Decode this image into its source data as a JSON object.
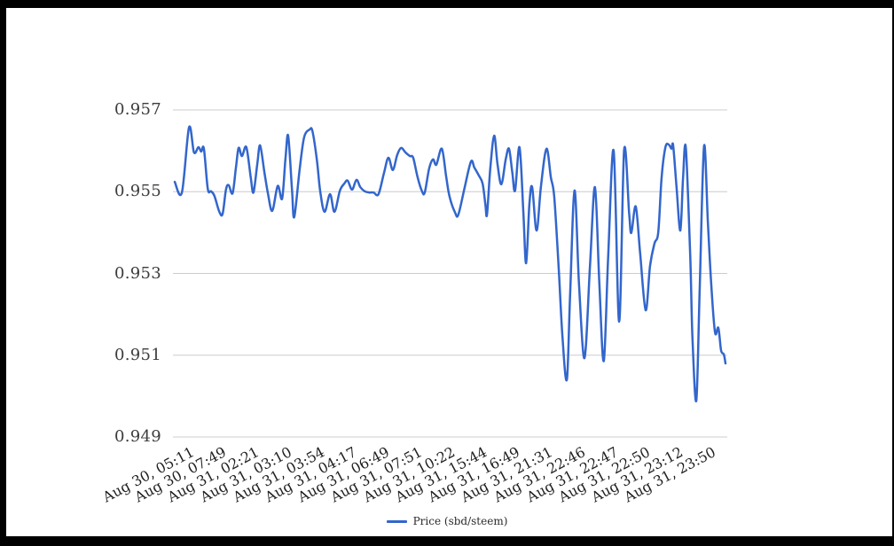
{
  "frame": {
    "border_color": "#000000",
    "background_color": "#ffffff"
  },
  "colors": {
    "line": "#3366cc",
    "grid": "#cccccc",
    "y_label": "#3c3c3c",
    "x_label": "#1f1f1f",
    "legend_text": "#2a2a2a"
  },
  "legend": {
    "position": "bottom-center",
    "label": "Price (sbd/steem)"
  },
  "chart_data": {
    "type": "line",
    "title": "",
    "grid": true,
    "smooth_line": true,
    "y_axis": {
      "tick_labels": [
        "0.957",
        "0.955",
        "0.953",
        "0.951",
        "0.949"
      ],
      "tick_values": [
        0.957,
        0.955,
        0.953,
        0.951,
        0.949
      ],
      "range": [
        0.949,
        0.957
      ]
    },
    "x_axis": {
      "tick_labels": [
        "Aug 30, 05:11",
        "Aug 30, 07:49",
        "Aug 31, 02:21",
        "Aug 31, 03:10",
        "Aug 31, 03:54",
        "Aug 31, 04:17",
        "Aug 31, 06:49",
        "Aug 31, 07:51",
        "Aug 31, 10:22",
        "Aug 31, 15:44",
        "Aug 31, 16:49",
        "Aug 31, 21:31",
        "Aug 31, 22:46",
        "Aug 31, 22:47",
        "Aug 31, 22:50",
        "Aug 31, 23:12",
        "Aug 31, 23:50"
      ],
      "slanted": true
    },
    "series": [
      {
        "name": "Price (sbd/steem)",
        "color": "#3366cc",
        "points_format": [
          "x_fraction_0_to_1",
          "price"
        ],
        "points": [
          [
            0.0,
            0.95524
          ],
          [
            0.013,
            0.95498
          ],
          [
            0.026,
            0.95657
          ],
          [
            0.035,
            0.95596
          ],
          [
            0.043,
            0.95609
          ],
          [
            0.048,
            0.95598
          ],
          [
            0.053,
            0.95605
          ],
          [
            0.06,
            0.95507
          ],
          [
            0.066,
            0.95501
          ],
          [
            0.072,
            0.9549
          ],
          [
            0.081,
            0.95451
          ],
          [
            0.087,
            0.95446
          ],
          [
            0.093,
            0.95505
          ],
          [
            0.098,
            0.95516
          ],
          [
            0.105,
            0.95496
          ],
          [
            0.111,
            0.95557
          ],
          [
            0.116,
            0.95607
          ],
          [
            0.122,
            0.95587
          ],
          [
            0.13,
            0.95609
          ],
          [
            0.138,
            0.95535
          ],
          [
            0.143,
            0.95498
          ],
          [
            0.15,
            0.95568
          ],
          [
            0.155,
            0.95613
          ],
          [
            0.163,
            0.95546
          ],
          [
            0.169,
            0.95498
          ],
          [
            0.177,
            0.95453
          ],
          [
            0.187,
            0.95514
          ],
          [
            0.195,
            0.95483
          ],
          [
            0.201,
            0.95579
          ],
          [
            0.206,
            0.95637
          ],
          [
            0.213,
            0.95503
          ],
          [
            0.217,
            0.95438
          ],
          [
            0.227,
            0.95557
          ],
          [
            0.235,
            0.95633
          ],
          [
            0.245,
            0.95652
          ],
          [
            0.25,
            0.95648
          ],
          [
            0.258,
            0.95579
          ],
          [
            0.264,
            0.95503
          ],
          [
            0.272,
            0.95451
          ],
          [
            0.282,
            0.95494
          ],
          [
            0.29,
            0.95451
          ],
          [
            0.3,
            0.95503
          ],
          [
            0.308,
            0.9552
          ],
          [
            0.314,
            0.95527
          ],
          [
            0.322,
            0.95505
          ],
          [
            0.33,
            0.95529
          ],
          [
            0.337,
            0.95511
          ],
          [
            0.345,
            0.95501
          ],
          [
            0.353,
            0.95498
          ],
          [
            0.361,
            0.95498
          ],
          [
            0.37,
            0.95494
          ],
          [
            0.38,
            0.95546
          ],
          [
            0.388,
            0.95583
          ],
          [
            0.396,
            0.95553
          ],
          [
            0.404,
            0.9559
          ],
          [
            0.411,
            0.95607
          ],
          [
            0.419,
            0.95596
          ],
          [
            0.427,
            0.95587
          ],
          [
            0.433,
            0.95583
          ],
          [
            0.441,
            0.95535
          ],
          [
            0.449,
            0.95501
          ],
          [
            0.454,
            0.95498
          ],
          [
            0.462,
            0.95557
          ],
          [
            0.469,
            0.95579
          ],
          [
            0.475,
            0.95566
          ],
          [
            0.485,
            0.95605
          ],
          [
            0.493,
            0.95535
          ],
          [
            0.499,
            0.95488
          ],
          [
            0.509,
            0.95449
          ],
          [
            0.515,
            0.95444
          ],
          [
            0.527,
            0.95514
          ],
          [
            0.538,
            0.95574
          ],
          [
            0.544,
            0.95559
          ],
          [
            0.552,
            0.9554
          ],
          [
            0.559,
            0.9552
          ],
          [
            0.564,
            0.9547
          ],
          [
            0.567,
            0.95444
          ],
          [
            0.573,
            0.95557
          ],
          [
            0.58,
            0.95637
          ],
          [
            0.586,
            0.95568
          ],
          [
            0.593,
            0.95518
          ],
          [
            0.601,
            0.95579
          ],
          [
            0.607,
            0.95605
          ],
          [
            0.613,
            0.95546
          ],
          [
            0.618,
            0.95503
          ],
          [
            0.626,
            0.95609
          ],
          [
            0.633,
            0.95449
          ],
          [
            0.638,
            0.95325
          ],
          [
            0.644,
            0.9547
          ],
          [
            0.649,
            0.95511
          ],
          [
            0.657,
            0.95405
          ],
          [
            0.665,
            0.95514
          ],
          [
            0.675,
            0.95605
          ],
          [
            0.683,
            0.95535
          ],
          [
            0.689,
            0.95488
          ],
          [
            0.697,
            0.95318
          ],
          [
            0.704,
            0.95145
          ],
          [
            0.712,
            0.95041
          ],
          [
            0.718,
            0.95253
          ],
          [
            0.726,
            0.95503
          ],
          [
            0.734,
            0.95275
          ],
          [
            0.744,
            0.95093
          ],
          [
            0.754,
            0.95318
          ],
          [
            0.763,
            0.95511
          ],
          [
            0.771,
            0.95275
          ],
          [
            0.779,
            0.95086
          ],
          [
            0.787,
            0.9534
          ],
          [
            0.797,
            0.956
          ],
          [
            0.807,
            0.95182
          ],
          [
            0.816,
            0.95602
          ],
          [
            0.825,
            0.95449
          ],
          [
            0.829,
            0.95399
          ],
          [
            0.837,
            0.95464
          ],
          [
            0.845,
            0.95351
          ],
          [
            0.855,
            0.9521
          ],
          [
            0.863,
            0.95318
          ],
          [
            0.871,
            0.95373
          ],
          [
            0.878,
            0.95401
          ],
          [
            0.884,
            0.95535
          ],
          [
            0.891,
            0.95609
          ],
          [
            0.897,
            0.95615
          ],
          [
            0.902,
            0.95605
          ],
          [
            0.905,
            0.95613
          ],
          [
            0.911,
            0.95514
          ],
          [
            0.918,
            0.95405
          ],
          [
            0.923,
            0.95535
          ],
          [
            0.928,
            0.95607
          ],
          [
            0.936,
            0.9534
          ],
          [
            0.94,
            0.95145
          ],
          [
            0.947,
            0.94989
          ],
          [
            0.953,
            0.95253
          ],
          [
            0.961,
            0.95611
          ],
          [
            0.968,
            0.95427
          ],
          [
            0.974,
            0.95275
          ],
          [
            0.981,
            0.95156
          ],
          [
            0.987,
            0.95167
          ],
          [
            0.992,
            0.95112
          ],
          [
            0.997,
            0.95102
          ],
          [
            1.0,
            0.9508
          ]
        ]
      }
    ],
    "legend_position": "bottom"
  }
}
